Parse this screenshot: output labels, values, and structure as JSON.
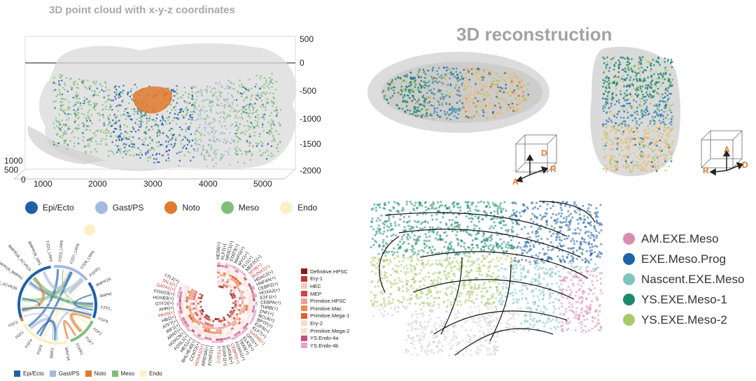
{
  "panel_a": {
    "title": "3D point cloud with x-y-z coordinates",
    "x_ticks": [
      "1000",
      "2000",
      "3000",
      "4000",
      "5000"
    ],
    "z_ticks": [
      "500",
      "0",
      "-500",
      "-1000",
      "-1500",
      "-2000"
    ],
    "y_ticks": [
      "1000",
      "500",
      "0"
    ]
  },
  "cell_legend": [
    {
      "label": "Epi/Ecto",
      "color": "#1f5fa8"
    },
    {
      "label": "Gast/PS",
      "color": "#a5b9de"
    },
    {
      "label": "Noto",
      "color": "#e07a2c"
    },
    {
      "label": "Meso",
      "color": "#7fbf7b"
    },
    {
      "label": "Endo",
      "color": "#fbf0c4"
    }
  ],
  "panel_b": {
    "title": "3D reconstruction",
    "axes_left": {
      "up": "D",
      "left": "A",
      "right": "R"
    },
    "axes_right": {
      "up": "A",
      "left": "R",
      "right": "D"
    }
  },
  "chord": {
    "labels_top": [
      "BMPR1B_ACVR2B",
      "BMPR1B_BMPR2",
      "BMPR1B_ACVR2A",
      "BMPR1B_SRS",
      "FZD1_LRP6",
      "FZD2_LRP6",
      "FZD7_LRP6",
      "FZD8_LRP6"
    ],
    "labels_left": [
      "FGFR1",
      "WNT3A",
      "BMP2",
      "FGF8",
      "FGF4",
      "FGF1",
      "FGF3"
    ],
    "labels_right": [
      "FGFR1",
      "BMPR1B_BMPR2",
      "BMPR1B_ACVR2B",
      "FZD1_LRP6",
      "FGF8",
      "FGF1",
      "FGF7"
    ],
    "bottom_legend": [
      {
        "label": "Epi/Ecto",
        "color": "#1f5fa8"
      },
      {
        "label": "Gast/PS",
        "color": "#a5b9de"
      },
      {
        "label": "Noto",
        "color": "#e07a2c"
      },
      {
        "label": "Meso",
        "color": "#7fbf7b"
      },
      {
        "label": "Endo",
        "color": "#fbf0c4"
      }
    ]
  },
  "tf_wheel": {
    "tfs_left": [
      "LYL1(+)",
      "TAL1(+)",
      "GATA1(+)",
      "FOXO3(+)",
      "HOXB3(+)",
      "GTF2I(+)",
      "AHR(+)",
      "PAX6(+)",
      "HBZ(+)",
      "ATF7(+)",
      "IRF1(+)",
      "ARNT(+)",
      "HOXC9(+)",
      "FOSL1(+)",
      "HES1(+)",
      "BHLHE40(+)",
      "CCNT2(+)",
      "HOXA10(+)",
      "ARID3A(+)",
      "FOXF2(+)",
      "ETS1(+)",
      "FOXF1(+)",
      "GATA3(+)",
      "CEBPD(+)",
      "FOXA1(+)",
      "TBX6(+)",
      "ELK3(+)",
      "GFI1(+)",
      "GATA6(+)"
    ],
    "tfs_right": [
      "HES6(+)",
      "KLF1(+)",
      "NR3C1(+)",
      "STAT3(+)",
      "MAFG(+)",
      "MYC(+)",
      "FLI1(+)",
      "MEF2C(+)",
      "MYB(+)",
      "RUNX1(+)",
      "HDAC2(+)",
      "HNF4A(+)",
      "CEBPZ(+)",
      "HOXA2(+)",
      "E2F1(+)",
      "CEBPA(+)",
      "THRB(+)",
      "ZNF(+)",
      "BCL6(+)",
      "BPTF(+)",
      "E2F6(+)",
      "KLF7(+)"
    ],
    "cell_types": [
      {
        "label": "Definitive.HPSC",
        "color": "#8b1a1a"
      },
      {
        "label": "Ery-1",
        "color": "#c0392b"
      },
      {
        "label": "HEC",
        "color": "#f5c6c6"
      },
      {
        "label": "MEP",
        "color": "#d6453a"
      },
      {
        "label": "Primitive.HPSC",
        "color": "#e8a0a0"
      },
      {
        "label": "Primitive.Mac",
        "color": "#f08a4b"
      },
      {
        "label": "Primitive.Mega-1",
        "color": "#e35d2f"
      },
      {
        "label": "Ery-2",
        "color": "#f7d9d9"
      },
      {
        "label": "Primitive.Mega-2",
        "color": "#fbe3cf"
      },
      {
        "label": "YS.Endo-4a",
        "color": "#c94f7c"
      },
      {
        "label": "YS.Endo-4b",
        "color": "#e9a3c9"
      }
    ]
  },
  "trajectory_legend": [
    {
      "label": "AM.EXE.Meso",
      "color": "#d98caf"
    },
    {
      "label": "EXE.Meso.Prog",
      "color": "#1e63a8"
    },
    {
      "label": "Nascent.EXE.Meso",
      "color": "#7fc4c0"
    },
    {
      "label": "YS.EXE.Meso-1",
      "color": "#1a8a6a"
    },
    {
      "label": "YS.EXE.Meso-2",
      "color": "#a8c96a"
    }
  ],
  "colors": {
    "epi": "#1f5fa8",
    "gast": "#a5b9de",
    "noto": "#e07a2c",
    "meso": "#7fbf7b",
    "endo": "#fbf0c4",
    "tissue": "#d7d7d7"
  }
}
